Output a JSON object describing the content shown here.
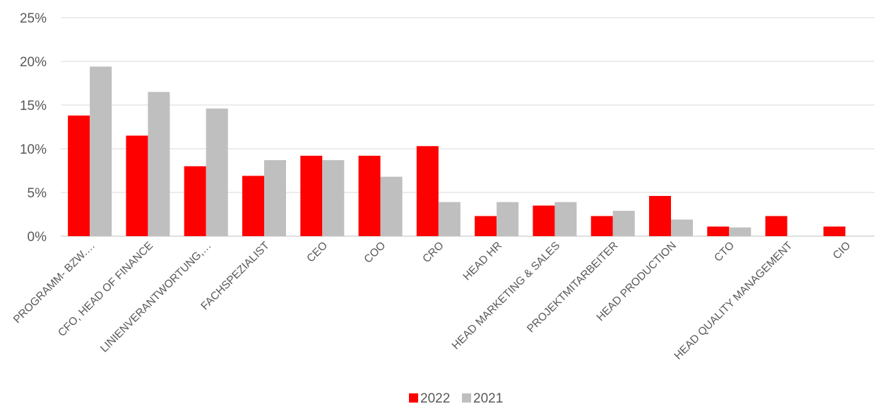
{
  "chart_data": {
    "type": "bar",
    "categories": [
      "PROGRAMM- BZW.…",
      "CFO, HEAD OF FINANCE",
      "LINIENVERANTWORTUNG,…",
      "FACHSPEZIALIST",
      "CEO",
      "COO",
      "CRO",
      "HEAD HR",
      "HEAD MARKETING & SALES",
      "PROJEKTMITARBEITER",
      "HEAD PRODUCTION",
      "CTO",
      "HEAD QUALITY MANAGEMENT",
      "CIO"
    ],
    "series": [
      {
        "name": "2022",
        "color": "#ff0000",
        "values": [
          13.8,
          11.5,
          8.0,
          6.9,
          9.2,
          9.2,
          10.3,
          2.3,
          3.5,
          2.3,
          4.6,
          1.1,
          2.3,
          1.1
        ]
      },
      {
        "name": "2021",
        "color": "#bfbfbf",
        "values": [
          19.4,
          16.5,
          14.6,
          8.7,
          8.7,
          6.8,
          3.9,
          3.9,
          3.9,
          2.9,
          1.9,
          1.0,
          null,
          null
        ]
      }
    ],
    "yticks": [
      "0%",
      "5%",
      "10%",
      "15%",
      "20%",
      "25%"
    ],
    "ylim": [
      0,
      25
    ],
    "grid": true,
    "legend_position": "bottom-center",
    "title": "",
    "xlabel": "",
    "ylabel": ""
  }
}
